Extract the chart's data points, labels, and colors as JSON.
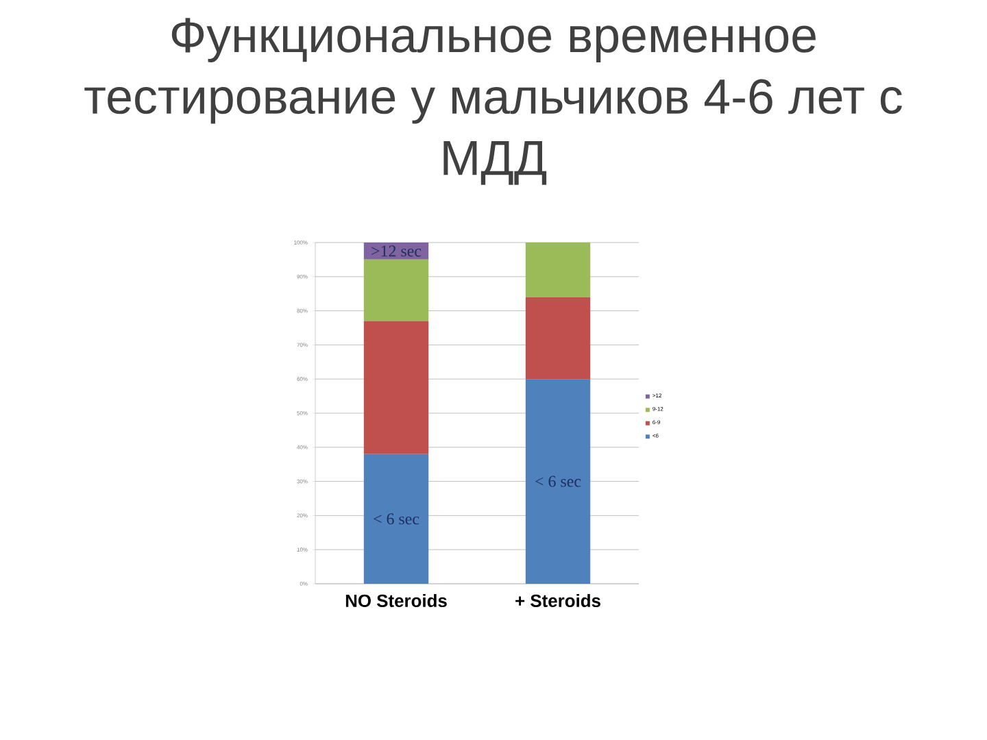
{
  "chart_data": {
    "type": "bar",
    "title": "Функциональное временное тестирование у мальчиков 4-6 лет с МДД",
    "categories": [
      "NO Steroids",
      "+ Steroids"
    ],
    "stacked": true,
    "series": [
      {
        "name": "<6",
        "color": "#4f81bd",
        "values": [
          38,
          60
        ],
        "value_labels": [
          "< 6 sec",
          "< 6 sec"
        ]
      },
      {
        "name": "6-9",
        "color": "#c0504d",
        "values": [
          39,
          24
        ]
      },
      {
        "name": "9-12",
        "color": "#9bbb59",
        "values": [
          18,
          16
        ]
      },
      {
        "name": ">12",
        "color": "#8064a2",
        "values": [
          5,
          null
        ],
        "value_labels": [
          ">12 sec",
          null
        ]
      }
    ],
    "ylim": [
      0,
      100
    ],
    "yticks": [
      {
        "value": 0,
        "label": "0%"
      },
      {
        "value": 10,
        "label": "10%"
      },
      {
        "value": 20,
        "label": "20%"
      },
      {
        "value": 30,
        "label": "30%"
      },
      {
        "value": 40,
        "label": "40%"
      },
      {
        "value": 50,
        "label": "50%"
      },
      {
        "value": 60,
        "label": "60%"
      },
      {
        "value": 70,
        "label": "70%"
      },
      {
        "value": 80,
        "label": "80%"
      },
      {
        "value": 90,
        "label": "90%"
      },
      {
        "value": 100,
        "label": "100%"
      }
    ],
    "grid": "y",
    "legend": "right"
  }
}
